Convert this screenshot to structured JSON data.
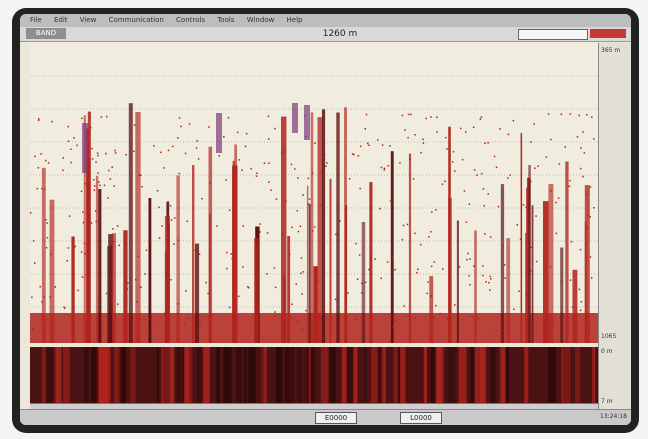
{
  "menu": {
    "items": [
      "File",
      "Edit",
      "View",
      "Communication",
      "Controls",
      "Tools",
      "Window",
      "Help"
    ]
  },
  "header": {
    "mode": "BAND",
    "range": "1260 m"
  },
  "scale": {
    "top_label": "365 m",
    "mid_label": "1065",
    "zoom_top": "0 m",
    "zoom_bottom": "7 m"
  },
  "status": {
    "left_box": "E0000",
    "right_box": "L0000",
    "time": "13:24:18"
  },
  "colors": {
    "echo_red": "#b0241d",
    "dark_red": "#5a1010",
    "background": "#f0ecde"
  },
  "icons": {
    "scale": "depth-scale-icon"
  }
}
